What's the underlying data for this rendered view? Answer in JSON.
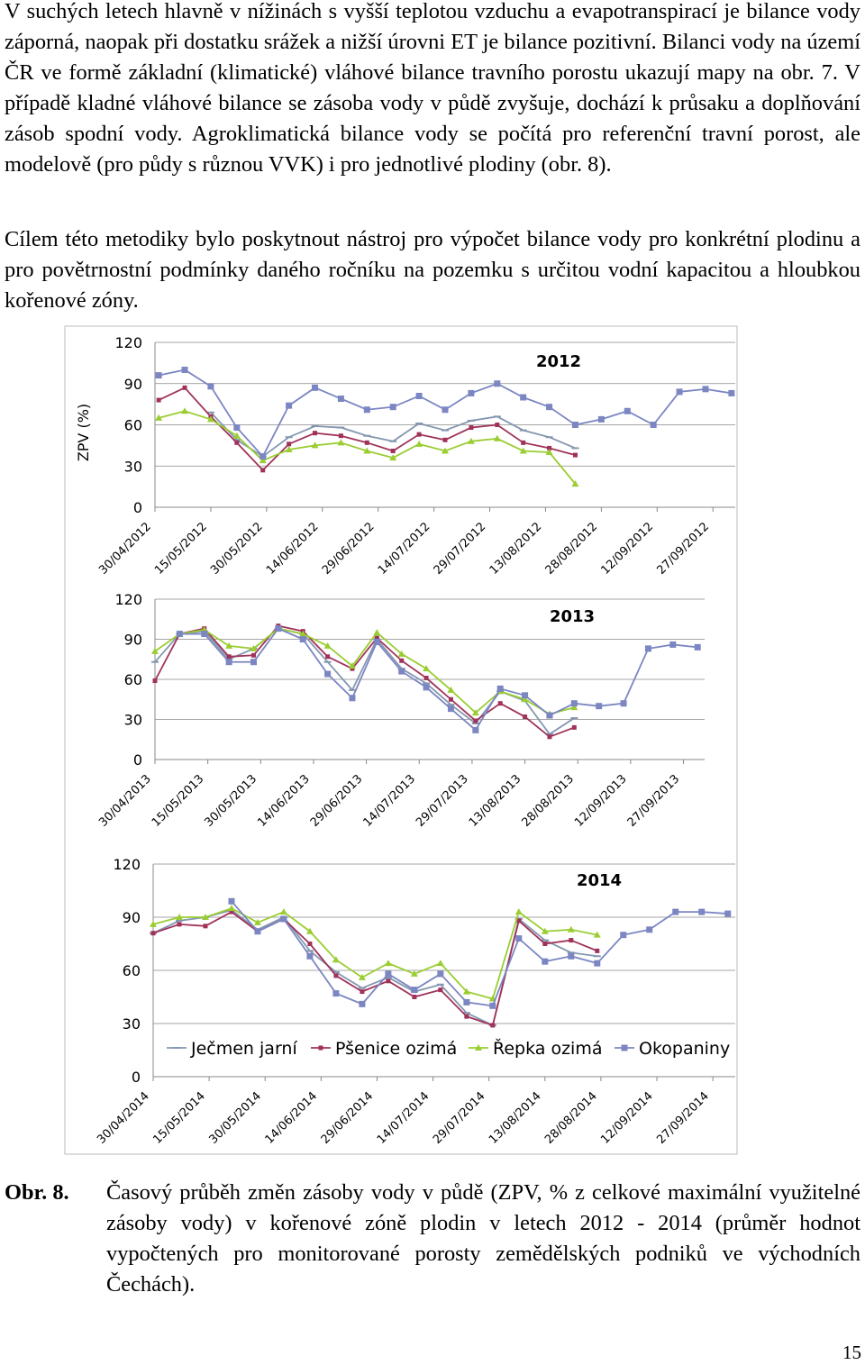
{
  "paragraphs": [
    "V suchých letech hlavně v nížinách s vyšší teplotou vzduchu a evapotranspirací je bilance vody záporná, naopak při dostatku srážek a nižší úrovni ET je bilance pozitivní. Bilanci vody na území ČR ve formě základní (klimatické) vláhové bilance travního porostu ukazují mapy na obr. 7. V případě kladné vláhové bilance se zásoba vody v půdě zvyšuje, dochází k průsaku a doplňování zásob spodní vody. Agroklimatická bilance vody se počítá pro referenční travní porost, ale modelově (pro půdy s různou VVK) i pro jednotlivé plodiny (obr. 8).",
    "Cílem této metodiky bylo poskytnout nástroj pro výpočet bilance vody pro konkrétní plodinu a pro povětrnostní podmínky daného ročníku na pozemku s určitou vodní kapacitou a hloubkou kořenové zóny."
  ],
  "chart_data": [
    {
      "type": "line",
      "title": "2012",
      "y_label": "ZPV (%)",
      "grid": true,
      "x": [
        "2012-05-01",
        "2012-05-08",
        "2012-05-15",
        "2012-05-22",
        "2012-05-29",
        "2012-06-05",
        "2012-06-12",
        "2012-06-19",
        "2012-06-26",
        "2012-07-03",
        "2012-07-10",
        "2012-07-17",
        "2012-07-24",
        "2012-07-31",
        "2012-08-07",
        "2012-08-14",
        "2012-08-21",
        "2012-08-28",
        "2012-09-04",
        "2012-09-11",
        "2012-09-18",
        "2012-09-25",
        "2012-10-02"
      ],
      "xlim": [
        "2012-04-30",
        "2012-10-03"
      ],
      "xticks": [
        {
          "value": "2012-04-30",
          "label": "30/04/2012"
        },
        {
          "value": "2012-05-15",
          "label": "15/05/2012"
        },
        {
          "value": "2012-05-30",
          "label": "30/05/2012"
        },
        {
          "value": "2012-06-14",
          "label": "14/06/2012"
        },
        {
          "value": "2012-06-29",
          "label": "29/06/2012"
        },
        {
          "value": "2012-07-14",
          "label": "14/07/2012"
        },
        {
          "value": "2012-07-29",
          "label": "29/07/2012"
        },
        {
          "value": "2012-08-13",
          "label": "13/08/2012"
        },
        {
          "value": "2012-08-28",
          "label": "28/08/2012"
        },
        {
          "value": "2012-09-12",
          "label": "12/09/2012"
        },
        {
          "value": "2012-09-27",
          "label": "27/09/2012"
        }
      ],
      "ylim": [
        0,
        120
      ],
      "yticks": [
        0,
        30,
        60,
        90,
        120
      ],
      "series": [
        {
          "color": "#8497b0",
          "marker": "dash",
          "values": [
            null,
            null,
            69,
            49,
            37,
            51,
            59,
            58,
            52,
            48,
            61,
            56,
            63,
            66,
            56,
            51,
            43,
            null,
            null,
            null,
            null,
            null,
            null
          ]
        },
        {
          "color": "#a0325a",
          "marker": "square",
          "values": [
            78,
            87,
            66,
            47,
            27,
            46,
            54,
            52,
            47,
            41,
            53,
            49,
            58,
            60,
            47,
            43,
            38,
            null,
            null,
            null,
            null,
            null,
            null
          ]
        },
        {
          "color": "#9acd32",
          "marker": "triangle",
          "values": [
            65,
            70,
            64,
            52,
            34,
            42,
            45,
            47,
            41,
            36,
            46,
            41,
            48,
            50,
            41,
            40,
            17,
            null,
            null,
            null,
            null,
            null,
            null
          ]
        },
        {
          "color": "#7b86c2",
          "marker": "bigsquare",
          "values": [
            96,
            100,
            88,
            58,
            37,
            74,
            87,
            79,
            71,
            73,
            81,
            71,
            83,
            90,
            80,
            73,
            60,
            64,
            70,
            60,
            84,
            86,
            83
          ]
        }
      ]
    },
    {
      "type": "line",
      "title": "2013",
      "grid": true,
      "x": [
        "2013-04-30",
        "2013-05-07",
        "2013-05-14",
        "2013-05-21",
        "2013-05-28",
        "2013-06-04",
        "2013-06-11",
        "2013-06-18",
        "2013-06-25",
        "2013-07-02",
        "2013-07-09",
        "2013-07-16",
        "2013-07-23",
        "2013-07-30",
        "2013-08-06",
        "2013-08-13",
        "2013-08-20",
        "2013-08-27",
        "2013-09-03",
        "2013-09-10",
        "2013-09-17",
        "2013-09-24",
        "2013-10-01"
      ],
      "xlim": [
        "2013-04-30",
        "2013-10-03"
      ],
      "xticks": [
        {
          "value": "2013-04-30",
          "label": "30/04/2013"
        },
        {
          "value": "2013-05-15",
          "label": "15/05/2013"
        },
        {
          "value": "2013-05-30",
          "label": "30/05/2013"
        },
        {
          "value": "2013-06-14",
          "label": "14/06/2013"
        },
        {
          "value": "2013-06-29",
          "label": "29/06/2013"
        },
        {
          "value": "2013-07-14",
          "label": "14/07/2013"
        },
        {
          "value": "2013-07-29",
          "label": "29/07/2013"
        },
        {
          "value": "2013-08-13",
          "label": "13/08/2013"
        },
        {
          "value": "2013-08-28",
          "label": "28/08/2013"
        },
        {
          "value": "2013-09-12",
          "label": "12/09/2013"
        },
        {
          "value": "2013-09-27",
          "label": "27/09/2013"
        }
      ],
      "ylim": [
        0,
        120
      ],
      "yticks": [
        0,
        30,
        60,
        90,
        120
      ],
      "series": [
        {
          "color": "#8497b0",
          "marker": "dash",
          "values": [
            73,
            94,
            96,
            75,
            83,
            98,
            94,
            73,
            52,
            90,
            68,
            57,
            41,
            27,
            51,
            44,
            19,
            31,
            null,
            null,
            null,
            null,
            null
          ]
        },
        {
          "color": "#a0325a",
          "marker": "square",
          "values": [
            59,
            94,
            98,
            77,
            78,
            100,
            96,
            77,
            68,
            91,
            74,
            61,
            45,
            29,
            42,
            32,
            17,
            24,
            null,
            null,
            null,
            null,
            null
          ]
        },
        {
          "color": "#9acd32",
          "marker": "triangle",
          "values": [
            81,
            94,
            97,
            85,
            83,
            98,
            94,
            85,
            70,
            95,
            79,
            68,
            52,
            35,
            51,
            45,
            34,
            39,
            null,
            null,
            null,
            null,
            null
          ]
        },
        {
          "color": "#7b86c2",
          "marker": "bigsquare",
          "values": [
            null,
            94,
            94,
            73,
            73,
            98,
            90,
            64,
            46,
            88,
            66,
            54,
            38,
            22,
            53,
            48,
            33,
            42,
            40,
            42,
            83,
            86,
            84
          ]
        }
      ]
    },
    {
      "type": "line",
      "title": "2014",
      "grid": true,
      "x": [
        "2014-04-30",
        "2014-05-07",
        "2014-05-14",
        "2014-05-21",
        "2014-05-28",
        "2014-06-04",
        "2014-06-11",
        "2014-06-18",
        "2014-06-25",
        "2014-07-02",
        "2014-07-09",
        "2014-07-16",
        "2014-07-23",
        "2014-07-30",
        "2014-08-06",
        "2014-08-13",
        "2014-08-20",
        "2014-08-27",
        "2014-09-03",
        "2014-09-10",
        "2014-09-17",
        "2014-09-24",
        "2014-10-01"
      ],
      "xlim": [
        "2014-04-30",
        "2014-10-03"
      ],
      "xticks": [
        {
          "value": "2014-04-30",
          "label": "30/04/2014"
        },
        {
          "value": "2014-05-15",
          "label": "15/05/2014"
        },
        {
          "value": "2014-05-30",
          "label": "30/05/2014"
        },
        {
          "value": "2014-06-14",
          "label": "14/06/2014"
        },
        {
          "value": "2014-06-29",
          "label": "29/06/2014"
        },
        {
          "value": "2014-07-14",
          "label": "14/07/2014"
        },
        {
          "value": "2014-07-29",
          "label": "29/07/2014"
        },
        {
          "value": "2014-08-13",
          "label": "13/08/2014"
        },
        {
          "value": "2014-08-28",
          "label": "28/08/2014"
        },
        {
          "value": "2014-09-12",
          "label": "12/09/2014"
        },
        {
          "value": "2014-09-27",
          "label": "27/09/2014"
        }
      ],
      "ylim": [
        0,
        120
      ],
      "yticks": [
        0,
        30,
        60,
        90,
        120
      ],
      "series": [
        {
          "name": "Ječmen jarní",
          "color": "#8497b0",
          "marker": "dash",
          "values": [
            81,
            88,
            90,
            94,
            83,
            90,
            71,
            59,
            50,
            56,
            48,
            52,
            36,
            29,
            89,
            77,
            70,
            68,
            null,
            null,
            null,
            null,
            null
          ]
        },
        {
          "name": "Pšenice ozimá",
          "color": "#a0325a",
          "marker": "square",
          "values": [
            81,
            86,
            85,
            93,
            82,
            89,
            75,
            57,
            48,
            54,
            45,
            49,
            34,
            29,
            88,
            75,
            77,
            71,
            null,
            null,
            null,
            null,
            null
          ]
        },
        {
          "name": "Řepka ozimá",
          "color": "#9acd32",
          "marker": "triangle",
          "values": [
            86,
            90,
            90,
            95,
            87,
            93,
            82,
            66,
            56,
            64,
            58,
            64,
            48,
            44,
            93,
            82,
            83,
            80,
            null,
            null,
            null,
            null,
            null
          ]
        },
        {
          "name": "Okopaniny",
          "color": "#7b86c2",
          "marker": "bigsquare",
          "values": [
            null,
            null,
            null,
            99,
            82,
            89,
            68,
            47,
            41,
            58,
            49,
            58,
            42,
            40,
            78,
            65,
            68,
            64,
            80,
            83,
            93,
            93,
            92
          ]
        }
      ]
    }
  ],
  "caption": {
    "label": "Obr. 8.",
    "text": "Časový průběh změn zásoby vody v půdě (ZPV, % z celkové maximální využitelné zásoby vody) v kořenové zóně plodin v letech 2012 - 2014 (průměr hodnot vypočtených pro monitorované porosty zemědělských podniků ve východních Čechách)."
  },
  "page_number": "15"
}
